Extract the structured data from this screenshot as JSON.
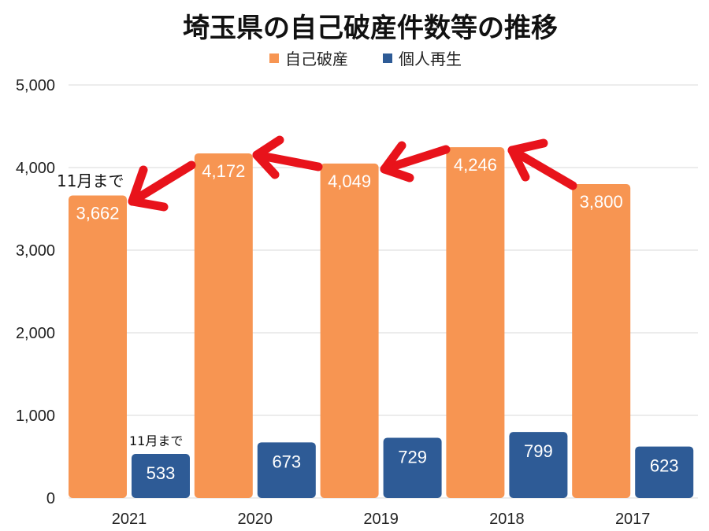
{
  "chart_data": {
    "type": "bar",
    "title": "埼玉県の自己破産件数等の推移",
    "categories": [
      "2021",
      "2020",
      "2019",
      "2018",
      "2017"
    ],
    "series": [
      {
        "name": "自己破産",
        "values": [
          3662,
          4172,
          4049,
          4246,
          3800
        ]
      },
      {
        "name": "個人再生",
        "values": [
          533,
          673,
          729,
          799,
          623
        ]
      }
    ],
    "data_labels": [
      [
        "3,662",
        "4,172",
        "4,049",
        "4,246",
        "3,800"
      ],
      [
        "533",
        "673",
        "729",
        "799",
        "623"
      ]
    ],
    "yticks": [
      "0",
      "1,000",
      "2,000",
      "3,000",
      "4,000",
      "5,000"
    ],
    "ylim": [
      0,
      5000
    ],
    "grid": true,
    "legend_position": "top-center",
    "annotations": [
      {
        "text": "11月まで",
        "target": "2021 自己破産"
      },
      {
        "text": "11月まで",
        "target": "2021 個人再生"
      }
    ],
    "colors": {
      "series": [
        "#f79552",
        "#2e5b96"
      ],
      "arrows": "#e8131b",
      "grid": "#d9d9d9"
    }
  }
}
